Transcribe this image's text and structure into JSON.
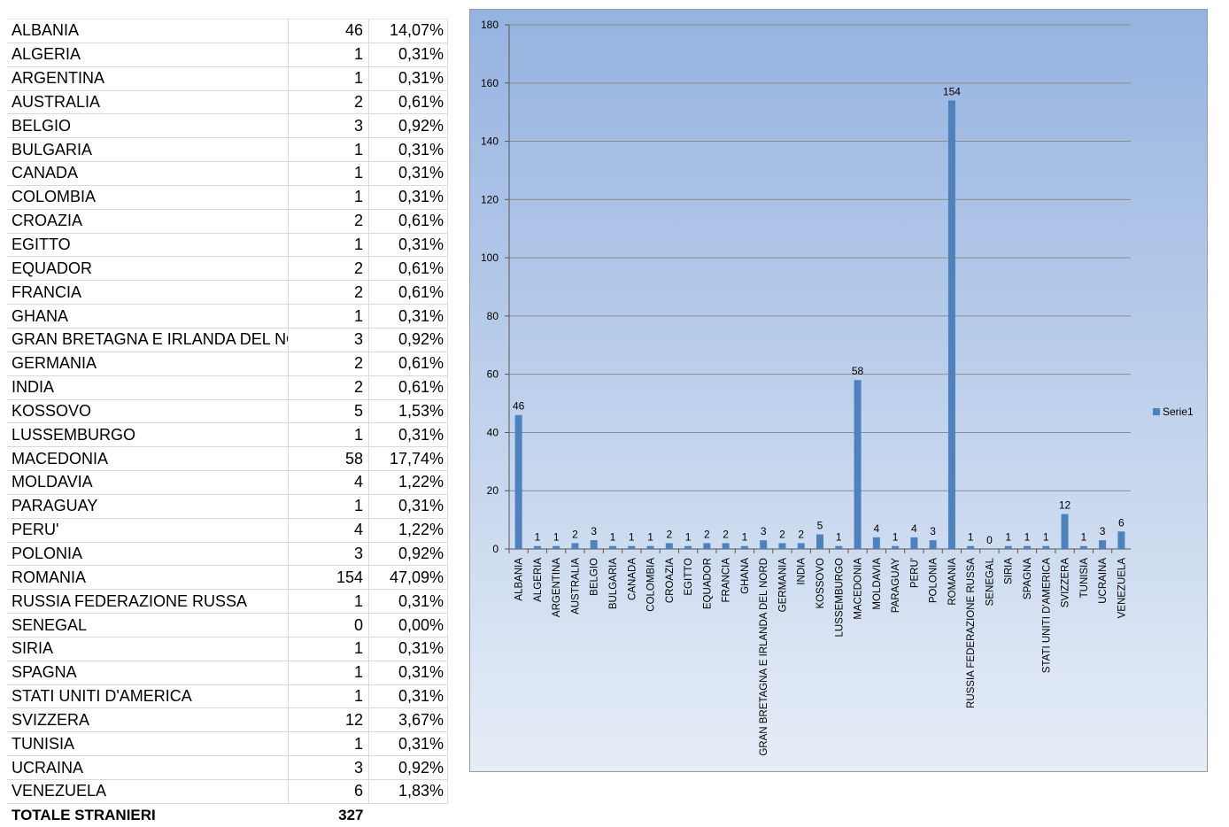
{
  "table": {
    "rows": [
      {
        "country": "ALBANIA",
        "count": "46",
        "pct": "14,07%"
      },
      {
        "country": "ALGERIA",
        "count": "1",
        "pct": "0,31%"
      },
      {
        "country": "ARGENTINA",
        "count": "1",
        "pct": "0,31%"
      },
      {
        "country": "AUSTRALIA",
        "count": "2",
        "pct": "0,61%"
      },
      {
        "country": "BELGIO",
        "count": "3",
        "pct": "0,92%"
      },
      {
        "country": "BULGARIA",
        "count": "1",
        "pct": "0,31%"
      },
      {
        "country": "CANADA",
        "count": "1",
        "pct": "0,31%"
      },
      {
        "country": "COLOMBIA",
        "count": "1",
        "pct": "0,31%"
      },
      {
        "country": "CROAZIA",
        "count": "2",
        "pct": "0,61%"
      },
      {
        "country": "EGITTO",
        "count": "1",
        "pct": "0,31%"
      },
      {
        "country": "EQUADOR",
        "count": "2",
        "pct": "0,61%"
      },
      {
        "country": "FRANCIA",
        "count": "2",
        "pct": "0,61%"
      },
      {
        "country": "GHANA",
        "count": "1",
        "pct": "0,31%"
      },
      {
        "country": "GRAN BRETAGNA E IRLANDA DEL NOI",
        "count": "3",
        "pct": "0,92%"
      },
      {
        "country": "GERMANIA",
        "count": "2",
        "pct": "0,61%"
      },
      {
        "country": "INDIA",
        "count": "2",
        "pct": "0,61%"
      },
      {
        "country": "KOSSOVO",
        "count": "5",
        "pct": "1,53%"
      },
      {
        "country": "LUSSEMBURGO",
        "count": "1",
        "pct": "0,31%"
      },
      {
        "country": "MACEDONIA",
        "count": "58",
        "pct": "17,74%"
      },
      {
        "country": "MOLDAVIA",
        "count": "4",
        "pct": "1,22%"
      },
      {
        "country": "PARAGUAY",
        "count": "1",
        "pct": "0,31%"
      },
      {
        "country": "PERU'",
        "count": "4",
        "pct": "1,22%"
      },
      {
        "country": "POLONIA",
        "count": "3",
        "pct": "0,92%"
      },
      {
        "country": "ROMANIA",
        "count": "154",
        "pct": "47,09%"
      },
      {
        "country": "RUSSIA FEDERAZIONE RUSSA",
        "count": "1",
        "pct": "0,31%"
      },
      {
        "country": "SENEGAL",
        "count": "0",
        "pct": "0,00%"
      },
      {
        "country": "SIRIA",
        "count": "1",
        "pct": "0,31%"
      },
      {
        "country": "SPAGNA",
        "count": "1",
        "pct": "0,31%"
      },
      {
        "country": "STATI UNITI D'AMERICA",
        "count": "1",
        "pct": "0,31%"
      },
      {
        "country": "SVIZZERA",
        "count": "12",
        "pct": "3,67%"
      },
      {
        "country": "TUNISIA",
        "count": "1",
        "pct": "0,31%"
      },
      {
        "country": "UCRAINA",
        "count": "3",
        "pct": "0,92%"
      },
      {
        "country": "VENEZUELA",
        "count": "6",
        "pct": "1,83%"
      }
    ],
    "total_label": "TOTALE STRANIERI",
    "total_value": "327"
  },
  "chart_data": {
    "type": "bar",
    "categories": [
      "ALBANIA",
      "ALGERIA",
      "ARGENTINA",
      "AUSTRALIA",
      "BELGIO",
      "BULGARIA",
      "CANADA",
      "COLOMBIA",
      "CROAZIA",
      "EGITTO",
      "EQUADOR",
      "FRANCIA",
      "GHANA",
      "GRAN BRETAGNA E IRLANDA DEL NORD",
      "GERMANIA",
      "INDIA",
      "KOSSOVO",
      "LUSSEMBURGO",
      "MACEDONIA",
      "MOLDAVIA",
      "PARAGUAY",
      "PERU'",
      "POLONIA",
      "ROMANIA",
      "RUSSIA FEDERAZIONE RUSSA",
      "SENEGAL",
      "SIRIA",
      "SPAGNA",
      "STATI UNITI D'AMERICA",
      "SVIZZERA",
      "TUNISIA",
      "UCRAINA",
      "VENEZUELA"
    ],
    "series": [
      {
        "name": "Serie1",
        "values": [
          46,
          1,
          1,
          2,
          3,
          1,
          1,
          1,
          2,
          1,
          2,
          2,
          1,
          3,
          2,
          2,
          5,
          1,
          58,
          4,
          1,
          4,
          3,
          154,
          1,
          0,
          1,
          1,
          1,
          12,
          1,
          3,
          6
        ]
      }
    ],
    "yticks": [
      0,
      20,
      40,
      60,
      80,
      100,
      120,
      140,
      160,
      180
    ],
    "ylim": [
      0,
      180
    ],
    "grid": true,
    "data_labels": true,
    "legend_position": "right",
    "colors": {
      "bar": "#4f81bd",
      "bg_top": "#95b3e0",
      "bg_bottom": "#e6edf7",
      "grid": "#8c8c8c"
    }
  }
}
